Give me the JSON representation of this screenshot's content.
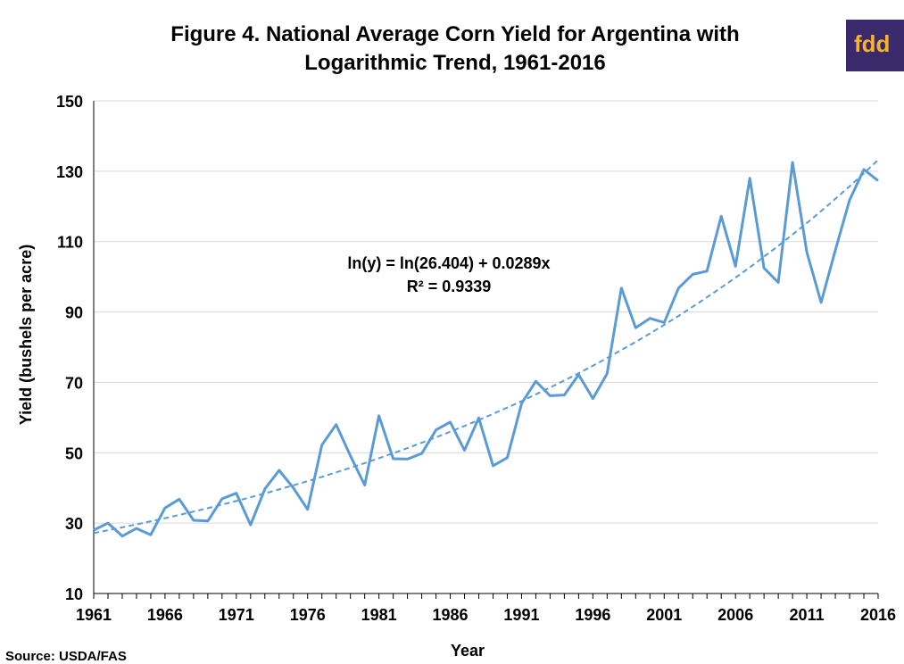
{
  "chart_data": {
    "type": "line",
    "title": [
      "Figure 4. National Average Corn Yield for Argentina with",
      "Logarithmic Trend, 1961-2016"
    ],
    "xlabel": "Year",
    "ylabel": "Yield (bushels per acre)",
    "ylim": [
      10,
      150
    ],
    "xlim": [
      1961,
      2016
    ],
    "yticks": [
      "10",
      "30",
      "50",
      "70",
      "90",
      "110",
      "130",
      "150"
    ],
    "xticks": [
      "1961",
      "1966",
      "1971",
      "1976",
      "1981",
      "1986",
      "1991",
      "1996",
      "2001",
      "2006",
      "2011",
      "2016"
    ],
    "grid": "horizontal",
    "series": [
      {
        "color": "#5b9bd5",
        "style": "solid",
        "x": [
          1961,
          1962,
          1963,
          1964,
          1965,
          1966,
          1967,
          1968,
          1969,
          1970,
          1971,
          1972,
          1973,
          1974,
          1975,
          1976,
          1977,
          1978,
          1979,
          1980,
          1981,
          1982,
          1983,
          1984,
          1985,
          1986,
          1987,
          1988,
          1989,
          1990,
          1991,
          1992,
          1993,
          1994,
          1995,
          1996,
          1997,
          1998,
          1999,
          2000,
          2001,
          2002,
          2003,
          2004,
          2005,
          2006,
          2007,
          2008,
          2009,
          2010,
          2011,
          2012,
          2013,
          2014,
          2015,
          2016
        ],
        "y": [
          28.0,
          30.0,
          26.3,
          28.5,
          26.7,
          34.3,
          36.8,
          30.8,
          30.6,
          36.9,
          38.5,
          29.5,
          39.7,
          45.0,
          40.0,
          33.9,
          52.2,
          58.0,
          49.1,
          40.8,
          60.5,
          48.3,
          48.2,
          49.8,
          56.5,
          58.7,
          50.7,
          59.9,
          46.3,
          48.6,
          64.0,
          70.3,
          66.2,
          66.4,
          72.2,
          65.4,
          72.5,
          96.8,
          85.5,
          88.2,
          87.0,
          96.8,
          100.7,
          101.6,
          117.2,
          103.0,
          128.0,
          102.5,
          98.4,
          132.5,
          107.0,
          92.7,
          107.6,
          121.8,
          130.5,
          127.3
        ]
      },
      {
        "color": "#5b9bd5",
        "style": "dashed",
        "trend": "exponential",
        "a": 26.404,
        "b": 0.0289
      }
    ],
    "annotations": [
      "ln(y) = ln(26.404) + 0.0289x",
      "R² = 0.9339"
    ]
  },
  "source": "Source: USDA/FAS",
  "logo": "fdd",
  "colors": {
    "series": "#5b9bd5",
    "grid": "#d9d9d9",
    "logo_bg": "#3a2a6b",
    "logo_text": "#f7b32b"
  }
}
